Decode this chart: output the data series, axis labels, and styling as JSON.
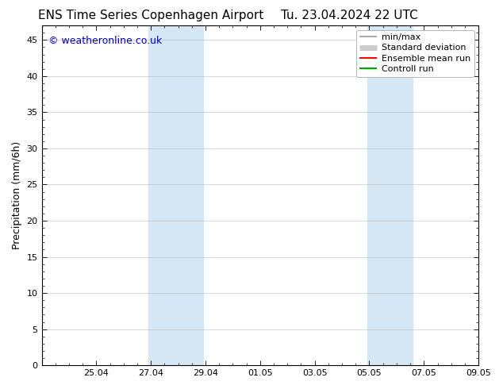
{
  "title_left": "ENS Time Series Copenhagen Airport",
  "title_right": "Tu. 23.04.2024 22 UTC",
  "ylabel": "Precipitation (mm/6h)",
  "watermark": "© weatheronline.co.uk",
  "ylim": [
    0,
    47
  ],
  "yticks": [
    0,
    5,
    10,
    15,
    20,
    25,
    30,
    35,
    40,
    45
  ],
  "xlim": [
    0,
    16
  ],
  "xtick_labels": [
    "25.04",
    "27.04",
    "29.04",
    "01.05",
    "03.05",
    "05.05",
    "07.05",
    "09.05"
  ],
  "xtick_positions": [
    2,
    4,
    6,
    8,
    10,
    12,
    14,
    16
  ],
  "shaded_bands": [
    {
      "x_start": 3.917,
      "x_end": 5.917
    },
    {
      "x_start": 11.917,
      "x_end": 13.583
    }
  ],
  "shade_color": "#d6e8f5",
  "background_color": "#ffffff",
  "grid_color": "#bbbbbb",
  "legend_items": [
    {
      "label": "min/max",
      "color": "#999999",
      "linewidth": 1.2
    },
    {
      "label": "Standard deviation",
      "color": "#cccccc",
      "linewidth": 5
    },
    {
      "label": "Ensemble mean run",
      "color": "#ff0000",
      "linewidth": 1.5
    },
    {
      "label": "Controll run",
      "color": "#00aa00",
      "linewidth": 1.5
    }
  ],
  "watermark_color": "#0000cc",
  "title_fontsize": 11,
  "ylabel_fontsize": 9,
  "tick_fontsize": 8,
  "watermark_fontsize": 9,
  "legend_fontsize": 8
}
